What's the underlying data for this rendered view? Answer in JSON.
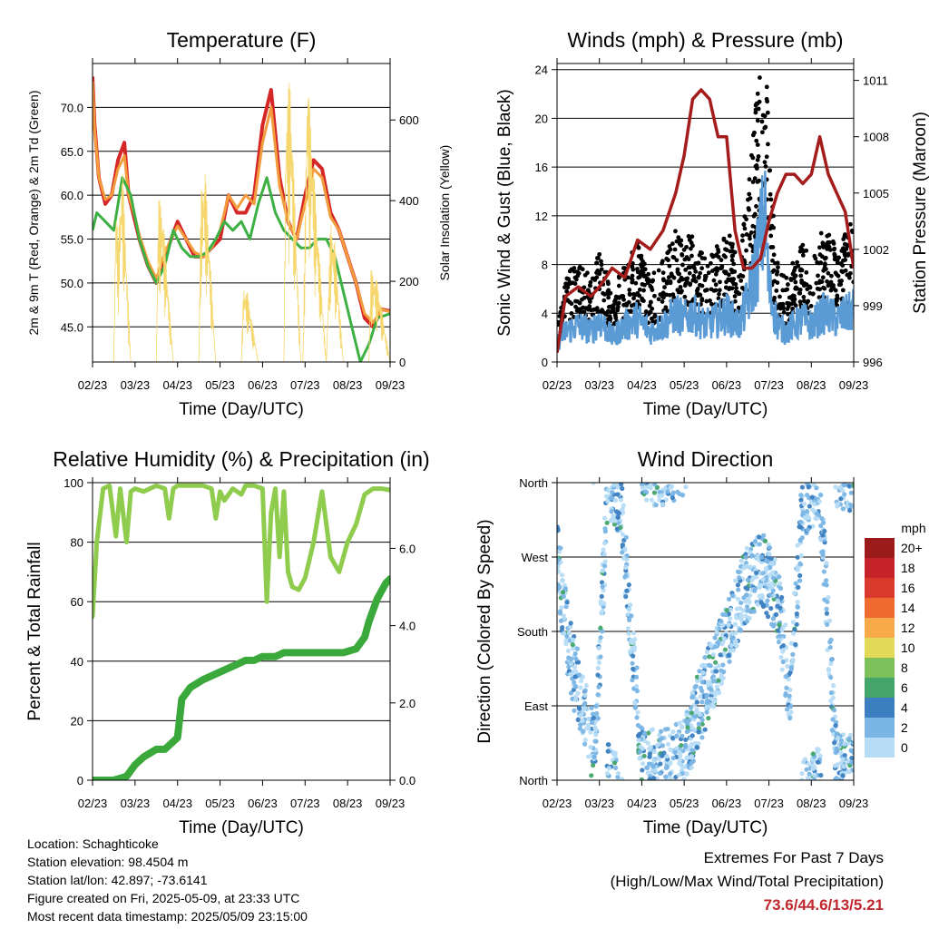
{
  "footer": {
    "location": "Location: Schaghticoke",
    "elevation": "Station elevation: 98.4504 m",
    "latlon": "Station lat/lon: 42.897; -73.6141",
    "created": "Figure created on Fri, 2025-05-09, at 23:33 UTC",
    "recent": "Most recent data timestamp: 2025/05/09 23:15:00"
  },
  "extremes": {
    "title": "Extremes For Past 7 Days",
    "subtitle": "(High/Low/Max Wind/Total Precipitation)",
    "value": "73.6/44.6/13/5.21",
    "value_color": "#c0282d"
  },
  "chart_data": [
    {
      "id": "temperature",
      "type": "line",
      "title": "Temperature (F)",
      "xlabel": "Time (Day/UTC)",
      "ylabel": "2m & 9m T (Red, Orange) & 2m Td (Green)",
      "ylabel_right": "Solar Insolation (Yellow)",
      "x_ticks": [
        "02/23",
        "03/23",
        "04/23",
        "05/23",
        "06/23",
        "07/23",
        "08/23",
        "09/23"
      ],
      "xlim": [
        0,
        7
      ],
      "ylim": [
        41,
        75
      ],
      "y_ticks": [
        "45.0",
        "50.0",
        "55.0",
        "60.0",
        "65.0",
        "70.0"
      ],
      "y_tick_values": [
        45,
        50,
        55,
        60,
        65,
        70
      ],
      "ylim_right": [
        0,
        740
      ],
      "y_ticks_right": [
        "0",
        "200",
        "400",
        "600"
      ],
      "y_tick_values_right": [
        0,
        200,
        400,
        600
      ],
      "grid": true,
      "colors": {
        "t2m": "#d62728",
        "t9m": "#f39c3c",
        "td2m": "#3cb043",
        "solar": "#f5d76e"
      },
      "series": [
        {
          "key": "t2m",
          "x": [
            0,
            0.05,
            0.15,
            0.3,
            0.45,
            0.6,
            0.75,
            0.85,
            1.0,
            1.1,
            1.3,
            1.5,
            1.7,
            1.85,
            2.0,
            2.2,
            2.4,
            2.6,
            2.8,
            3.0,
            3.2,
            3.4,
            3.6,
            3.8,
            4.0,
            4.2,
            4.4,
            4.6,
            4.8,
            5.0,
            5.2,
            5.4,
            5.6,
            5.8,
            6.0,
            6.2,
            6.4,
            6.6,
            6.8,
            7.0
          ],
          "y": [
            73.5,
            68,
            62,
            59,
            60,
            64,
            66,
            60,
            57,
            55,
            52,
            50,
            53,
            55,
            57,
            55,
            53,
            53,
            54,
            55,
            60,
            58,
            58,
            60,
            68,
            72,
            62,
            57,
            55,
            60,
            64,
            63,
            58,
            56,
            53,
            50,
            46,
            45,
            47,
            46.8
          ]
        },
        {
          "key": "t9m",
          "x": [
            0,
            0.05,
            0.15,
            0.3,
            0.45,
            0.6,
            0.75,
            0.85,
            1.0,
            1.1,
            1.3,
            1.5,
            1.7,
            1.85,
            2.0,
            2.2,
            2.4,
            2.6,
            2.8,
            3.0,
            3.2,
            3.4,
            3.6,
            3.8,
            4.0,
            4.2,
            4.4,
            4.6,
            4.8,
            5.0,
            5.2,
            5.4,
            5.6,
            5.8,
            6.0,
            6.2,
            6.4,
            6.6,
            6.8,
            7.0
          ],
          "y": [
            73,
            67.5,
            62,
            59.5,
            60,
            63,
            64.5,
            60,
            57.5,
            55.5,
            52.5,
            50.5,
            53.5,
            55,
            56.5,
            55,
            53.5,
            53,
            54,
            56,
            60,
            58.5,
            60,
            59,
            66,
            70,
            61,
            57,
            55,
            59,
            63,
            62,
            57.5,
            56,
            53,
            50,
            46.5,
            45.5,
            47,
            46.7
          ]
        },
        {
          "key": "td2m",
          "x": [
            0,
            0.1,
            0.3,
            0.5,
            0.7,
            0.9,
            1.1,
            1.3,
            1.5,
            1.7,
            1.9,
            2.1,
            2.3,
            2.5,
            2.7,
            2.9,
            3.1,
            3.3,
            3.5,
            3.7,
            3.9,
            4.1,
            4.3,
            4.5,
            4.7,
            4.9,
            5.1,
            5.3,
            5.5,
            5.7,
            5.9,
            6.1,
            6.3,
            6.5,
            6.7,
            7.0
          ],
          "y": [
            56,
            58,
            57,
            56,
            62,
            60,
            55,
            52,
            50,
            52,
            56,
            54,
            53,
            53,
            53.5,
            55,
            57,
            56,
            57,
            55,
            59,
            62,
            58,
            56,
            55,
            54,
            54,
            55,
            55,
            53,
            49,
            45,
            41,
            43,
            46,
            46.5
          ]
        },
        {
          "key": "solar",
          "x": [
            0,
            0.5,
            0.55,
            0.6,
            0.7,
            0.9,
            1.5,
            1.55,
            1.65,
            1.9,
            2.5,
            2.55,
            2.65,
            2.9,
            3.5,
            3.55,
            3.65,
            3.9,
            4.5,
            4.55,
            4.65,
            4.9,
            4.95,
            5.05,
            5.5,
            5.6,
            5.7,
            5.9,
            6.5,
            6.55,
            6.7,
            7.0
          ],
          "y": [
            0,
            0,
            420,
            300,
            500,
            0,
            0,
            410,
            380,
            0,
            0,
            420,
            480,
            0,
            0,
            190,
            170,
            0,
            0,
            640,
            710,
            0,
            0,
            730,
            0,
            350,
            300,
            0,
            0,
            230,
            200,
            0
          ]
        }
      ]
    },
    {
      "id": "winds",
      "type": "scatter",
      "title": "Winds (mph) & Pressure (mb)",
      "xlabel": "Time (Day/UTC)",
      "ylabel": "Sonic Wind & Gust (Blue, Black)",
      "ylabel_right": "Station Pressure (Maroon)",
      "x_ticks": [
        "02/23",
        "03/23",
        "04/23",
        "05/23",
        "06/23",
        "07/23",
        "08/23",
        "09/23"
      ],
      "xlim": [
        0,
        7
      ],
      "ylim": [
        0,
        24.5
      ],
      "y_ticks": [
        "0",
        "4",
        "8",
        "12",
        "16",
        "20",
        "24"
      ],
      "y_tick_values": [
        0,
        4,
        8,
        12,
        16,
        20,
        24
      ],
      "ylim_right": [
        996,
        1011.9
      ],
      "y_ticks_right": [
        "996",
        "999",
        "1002",
        "1005",
        "1008",
        "1011"
      ],
      "y_tick_values_right": [
        996,
        999,
        1002,
        1005,
        1008,
        1011
      ],
      "grid": true,
      "colors": {
        "wind": "#5b9bd5",
        "gust": "#000000",
        "pressure": "#a51c1c"
      },
      "series": [
        {
          "key": "wind",
          "x": [
            0,
            0.2,
            0.5,
            0.8,
            1.0,
            1.3,
            1.6,
            1.9,
            2.2,
            2.5,
            2.8,
            3.0,
            3.2,
            3.5,
            3.8,
            4.0,
            4.3,
            4.5,
            4.7,
            4.9,
            5.0,
            5.2,
            5.4,
            5.6,
            5.8,
            6.0,
            6.3,
            6.6,
            6.9,
            7.0
          ],
          "y": [
            1.5,
            2.5,
            3,
            2.5,
            3.5,
            2,
            3,
            3.5,
            2.5,
            3,
            4,
            3.5,
            4,
            3,
            3.5,
            4,
            3,
            5,
            8,
            12,
            6,
            3,
            2.5,
            3,
            3.5,
            3,
            4,
            3.5,
            4,
            4.5
          ]
        },
        {
          "key": "pressure",
          "x": [
            0,
            0.2,
            0.5,
            0.8,
            1.0,
            1.3,
            1.6,
            1.9,
            2.2,
            2.5,
            2.8,
            3.0,
            3.2,
            3.4,
            3.6,
            3.8,
            4.0,
            4.2,
            4.4,
            4.6,
            4.8,
            5.0,
            5.2,
            5.4,
            5.6,
            5.8,
            6.0,
            6.2,
            6.4,
            6.6,
            6.8,
            7.0
          ],
          "y": [
            996.5,
            999.5,
            1000,
            999.5,
            1000,
            1001,
            1000.5,
            1002.5,
            1002,
            1003,
            1005,
            1007,
            1010,
            1010.5,
            1010,
            1008,
            1008,
            1003,
            1001,
            1001,
            1001.5,
            1003.5,
            1005,
            1006,
            1006,
            1005.5,
            1006,
            1008,
            1006,
            1005,
            1004,
            1001
          ]
        }
      ]
    },
    {
      "id": "humidity",
      "type": "line",
      "title": "Relative Humidity (%) & Precipitation (in)",
      "xlabel": "Time (Day/UTC)",
      "ylabel": "Percent & Total Rainfall",
      "x_ticks": [
        "02/23",
        "03/23",
        "04/23",
        "05/23",
        "06/23",
        "07/23",
        "08/23",
        "09/23"
      ],
      "xlim": [
        0,
        7
      ],
      "ylim": [
        0,
        100
      ],
      "y_ticks": [
        "0",
        "20",
        "40",
        "60",
        "80",
        "100"
      ],
      "y_tick_values": [
        0,
        20,
        40,
        60,
        80,
        100
      ],
      "ylim_right": [
        0,
        7.7
      ],
      "y_ticks_right": [
        "0.0",
        "2.0",
        "4.0",
        "6.0"
      ],
      "y_tick_values_right": [
        0,
        2,
        4,
        6
      ],
      "grid": true,
      "colors": {
        "rh": "#8fcc4e",
        "rain": "#3aa83a"
      },
      "series": [
        {
          "key": "rh",
          "x": [
            0,
            0.1,
            0.25,
            0.4,
            0.55,
            0.65,
            0.8,
            0.9,
            1.0,
            1.2,
            1.5,
            1.7,
            1.8,
            1.9,
            2.0,
            2.3,
            2.6,
            2.8,
            2.9,
            3.0,
            3.1,
            3.3,
            3.5,
            3.6,
            3.8,
            4.0,
            4.1,
            4.2,
            4.3,
            4.4,
            4.5,
            4.6,
            4.7,
            4.85,
            5.0,
            5.2,
            5.4,
            5.6,
            5.8,
            6.0,
            6.2,
            6.4,
            6.6,
            6.8,
            7.0
          ],
          "y": [
            55,
            80,
            98,
            99,
            82,
            98,
            80,
            97,
            98,
            97,
            99,
            98,
            88,
            98,
            99,
            99,
            99,
            98,
            88,
            97,
            94,
            98,
            96,
            99,
            99,
            98,
            60,
            90,
            98,
            75,
            97,
            70,
            65,
            64,
            68,
            80,
            97,
            75,
            70,
            80,
            86,
            96,
            98,
            98,
            97.5
          ]
        },
        {
          "key": "rain",
          "x": [
            0,
            0.5,
            0.8,
            1.0,
            1.2,
            1.5,
            1.7,
            2.0,
            2.1,
            2.3,
            2.6,
            3.0,
            3.2,
            3.4,
            3.6,
            3.8,
            4.0,
            4.3,
            4.5,
            4.8,
            5.0,
            5.3,
            5.6,
            5.9,
            6.2,
            6.4,
            6.5,
            6.7,
            6.9,
            7.0
          ],
          "y": [
            0,
            0,
            0.1,
            0.4,
            0.6,
            0.8,
            0.8,
            1.1,
            2.1,
            2.4,
            2.6,
            2.8,
            2.9,
            3.0,
            3.1,
            3.1,
            3.2,
            3.2,
            3.3,
            3.3,
            3.3,
            3.3,
            3.3,
            3.3,
            3.4,
            3.7,
            4.1,
            4.7,
            5.1,
            5.21
          ]
        }
      ]
    },
    {
      "id": "wind_direction",
      "type": "scatter",
      "title": "Wind Direction",
      "xlabel": "Time (Day/UTC)",
      "ylabel": "Direction (Colored By Speed)",
      "x_ticks": [
        "02/23",
        "03/23",
        "04/23",
        "05/23",
        "06/23",
        "07/23",
        "08/23",
        "09/23"
      ],
      "xlim": [
        0,
        7
      ],
      "ylim": [
        0,
        360
      ],
      "y_ticks": [
        "North",
        "East",
        "South",
        "West",
        "North"
      ],
      "y_tick_values": [
        0,
        90,
        180,
        270,
        360
      ],
      "grid": true,
      "legend": {
        "title": "mph",
        "labels": [
          "20+",
          "18",
          "16",
          "14",
          "12",
          "10",
          "8",
          "6",
          "4",
          "2",
          "0"
        ],
        "colors": [
          "#9b1b1b",
          "#c6222a",
          "#d8392c",
          "#ef6a2f",
          "#f8a94a",
          "#e2d959",
          "#7cc15a",
          "#44a56a",
          "#3c7fc0",
          "#7ab5e5",
          "#b6dcf6"
        ],
        "placement": "right"
      }
    }
  ]
}
